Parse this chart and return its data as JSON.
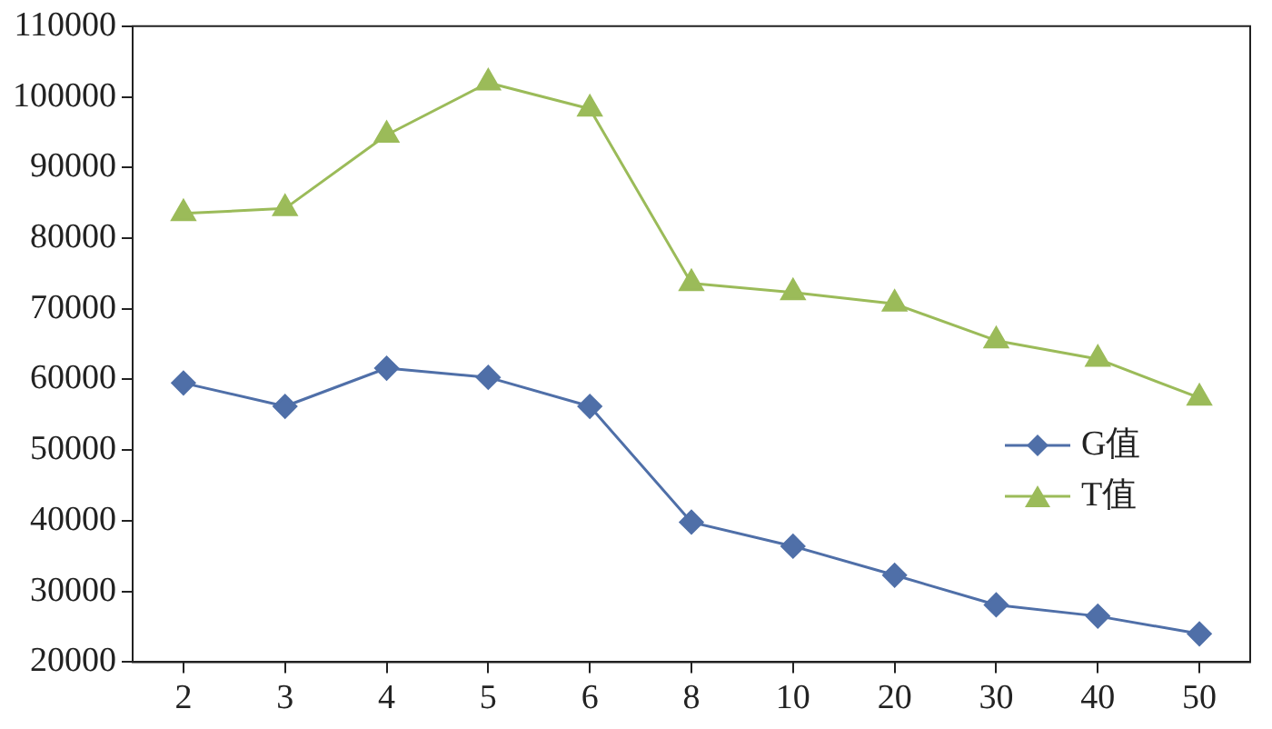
{
  "chart_data": {
    "type": "line",
    "categories": [
      "2",
      "3",
      "4",
      "5",
      "6",
      "8",
      "10",
      "20",
      "30",
      "40",
      "50"
    ],
    "series": [
      {
        "name": "G值",
        "color": "#4f6fa8",
        "marker": "diamond",
        "values": [
          59500,
          56200,
          61600,
          60300,
          56200,
          39800,
          36400,
          32300,
          28100,
          26500,
          24000
        ]
      },
      {
        "name": "T值",
        "color": "#9bbb59",
        "marker": "triangle",
        "values": [
          83500,
          84200,
          94600,
          102000,
          98300,
          73600,
          72300,
          70700,
          65500,
          62900,
          57400
        ]
      }
    ],
    "ylim": [
      20000,
      110000
    ],
    "yticks": [
      20000,
      30000,
      40000,
      50000,
      60000,
      70000,
      80000,
      90000,
      100000,
      110000
    ],
    "grid": false,
    "legend": "right",
    "line_style": "solid"
  }
}
